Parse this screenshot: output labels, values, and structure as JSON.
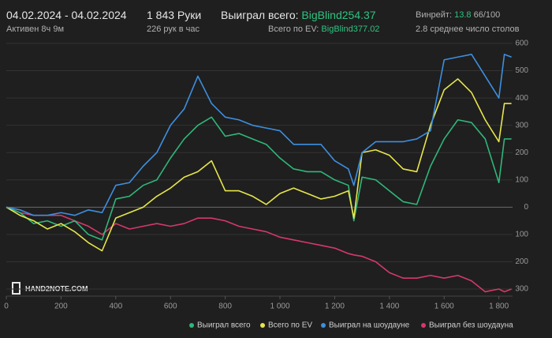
{
  "header": {
    "date_range": "04.02.2024 - 04.02.2024",
    "active": "Активен 8ч 9м",
    "hands": "1 843 Руки",
    "hands_per_hour": "226 рук в час",
    "won_label": "Выиграл всего:",
    "won_value": "BigBlind254.37",
    "ev_label": "Всего по EV:",
    "ev_value": "BigBlind377.02",
    "winrate_label": "Винрейт:",
    "winrate_value": "13.8",
    "winrate_unit": "66/100",
    "tables": "2.8 среднее число столов"
  },
  "logo": "HAND2NOTE.COM",
  "chart_data": {
    "type": "line",
    "x": [
      0,
      50,
      100,
      150,
      200,
      250,
      300,
      350,
      400,
      450,
      500,
      550,
      600,
      650,
      700,
      750,
      800,
      850,
      900,
      950,
      1000,
      1050,
      1100,
      1150,
      1200,
      1250,
      1270,
      1300,
      1350,
      1400,
      1450,
      1500,
      1550,
      1600,
      1650,
      1700,
      1750,
      1800,
      1820,
      1846
    ],
    "series": [
      {
        "name": "Выиграл всего",
        "color": "#2fb77a",
        "values": [
          0,
          -20,
          -60,
          -50,
          -70,
          -50,
          -100,
          -120,
          30,
          40,
          80,
          100,
          180,
          250,
          300,
          330,
          260,
          270,
          250,
          230,
          180,
          140,
          130,
          130,
          100,
          80,
          -50,
          110,
          100,
          60,
          20,
          10,
          150,
          250,
          320,
          310,
          250,
          90,
          250,
          250
        ]
      },
      {
        "name": "Всего по EV",
        "color": "#e6e64c",
        "values": [
          0,
          -30,
          -50,
          -80,
          -60,
          -90,
          -130,
          -160,
          -40,
          -20,
          0,
          40,
          70,
          110,
          130,
          170,
          60,
          60,
          40,
          10,
          50,
          70,
          50,
          30,
          40,
          60,
          -40,
          200,
          210,
          190,
          140,
          130,
          300,
          430,
          470,
          420,
          320,
          240,
          380,
          380
        ]
      },
      {
        "name": "Выиграл на шоудауне",
        "color": "#3d8fe0",
        "values": [
          0,
          -10,
          -30,
          -30,
          -20,
          -30,
          -10,
          -20,
          80,
          90,
          150,
          200,
          300,
          360,
          480,
          380,
          330,
          320,
          300,
          290,
          280,
          230,
          230,
          230,
          170,
          140,
          80,
          200,
          240,
          240,
          240,
          250,
          280,
          540,
          550,
          560,
          480,
          400,
          560,
          550
        ]
      },
      {
        "name": "Выиграл без шоудауна",
        "color": "#d6386a",
        "values": [
          0,
          -20,
          -30,
          -30,
          -30,
          -50,
          -70,
          -100,
          -60,
          -80,
          -70,
          -60,
          -70,
          -60,
          -40,
          -40,
          -50,
          -70,
          -80,
          -90,
          -110,
          -120,
          -130,
          -140,
          -150,
          -170,
          -175,
          -180,
          -200,
          -240,
          -260,
          -260,
          -250,
          -260,
          -250,
          -270,
          -310,
          -300,
          -310,
          -300
        ]
      }
    ],
    "xlim": [
      0,
      1850
    ],
    "ylim": [
      -300,
      600
    ],
    "xticks": [
      0,
      200,
      400,
      600,
      800,
      {
        "value": 1000,
        "label": "1 000"
      },
      {
        "value": 1200,
        "label": "1 200"
      },
      {
        "value": 1400,
        "label": "1 400"
      },
      {
        "value": 1600,
        "label": "1 600"
      },
      {
        "value": 1800,
        "label": "1 800"
      }
    ],
    "yticks": [
      {
        "value": -300,
        "label": "300"
      },
      {
        "value": -200,
        "label": "200"
      },
      {
        "value": -100,
        "label": "100"
      },
      0,
      100,
      200,
      300,
      400,
      500,
      600
    ],
    "grid": true
  }
}
